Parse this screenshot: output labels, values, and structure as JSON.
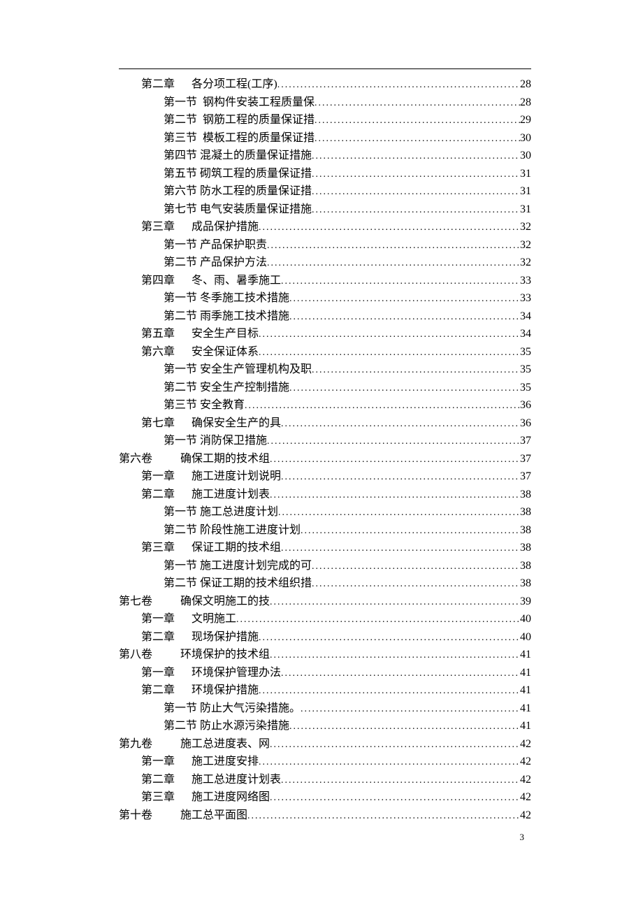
{
  "page_number": "3",
  "entries": [
    {
      "level": 1,
      "label": "第二章",
      "gap": 24,
      "title": "各分项工程(工序)",
      "page": "28"
    },
    {
      "level": 2,
      "label": "第一节",
      "gap": 8,
      "title": "钢构件安装工程质量保",
      "page": "28"
    },
    {
      "level": 2,
      "label": "第二节",
      "gap": 8,
      "title": "钢筋工程的质量保证措",
      "page": "29"
    },
    {
      "level": 2,
      "label": "第三节",
      "gap": 8,
      "title": "模板工程的质量保证措",
      "page": "30"
    },
    {
      "level": 2,
      "label": "第四节",
      "gap": 4,
      "title": "混凝土的质量保证措施",
      "page": "30"
    },
    {
      "level": 2,
      "label": "第五节",
      "gap": 4,
      "title": "砌筑工程的质量保证措",
      "page": "31"
    },
    {
      "level": 2,
      "label": "第六节",
      "gap": 4,
      "title": "防水工程的质量保证措",
      "page": "31"
    },
    {
      "level": 2,
      "label": "第七节",
      "gap": 4,
      "title": "电气安装质量保证措施",
      "page": "31"
    },
    {
      "level": 1,
      "label": "第三章",
      "gap": 24,
      "title": "成品保护措施",
      "page": "32"
    },
    {
      "level": 2,
      "label": "第一节",
      "gap": 4,
      "title": "产品保护职责",
      "page": "32"
    },
    {
      "level": 2,
      "label": "第二节",
      "gap": 4,
      "title": "产品保护方法",
      "page": "32"
    },
    {
      "level": 1,
      "label": "第四章",
      "gap": 24,
      "title": "冬、雨、暑季施工",
      "page": "33"
    },
    {
      "level": 2,
      "label": "第一节",
      "gap": 4,
      "title": "冬季施工技术措施",
      "page": "33"
    },
    {
      "level": 2,
      "label": "第二节",
      "gap": 4,
      "title": "雨季施工技术措施",
      "page": "34"
    },
    {
      "level": 1,
      "label": "第五章",
      "gap": 24,
      "title": "安全生产目标",
      "page": "34"
    },
    {
      "level": 1,
      "label": "第六章",
      "gap": 24,
      "title": "安全保证体系",
      "page": "35"
    },
    {
      "level": 2,
      "label": "第一节",
      "gap": 4,
      "title": "安全生产管理机构及职",
      "page": "35"
    },
    {
      "level": 2,
      "label": "第二节",
      "gap": 4,
      "title": "安全生产控制措施",
      "page": "35"
    },
    {
      "level": 2,
      "label": "第三节",
      "gap": 4,
      "title": "安全教育",
      "page": "36"
    },
    {
      "level": 1,
      "label": "第七章",
      "gap": 24,
      "title": "确保安全生产的具",
      "page": "36"
    },
    {
      "level": 2,
      "label": "第一节",
      "gap": 4,
      "title": "消防保卫措施",
      "page": "37"
    },
    {
      "level": 0,
      "label": "第六卷",
      "gap": 40,
      "title": "确保工期的技术组",
      "page": "37"
    },
    {
      "level": 1,
      "label": "第一章",
      "gap": 24,
      "title": "施工进度计划说明",
      "page": "37"
    },
    {
      "level": 1,
      "label": "第二章",
      "gap": 24,
      "title": "施工进度计划表",
      "page": "38"
    },
    {
      "level": 2,
      "label": "第一节",
      "gap": 4,
      "title": "施工总进度计划",
      "page": "38"
    },
    {
      "level": 2,
      "label": "第二节",
      "gap": 4,
      "title": "阶段性施工进度计划",
      "page": "38"
    },
    {
      "level": 1,
      "label": "第三章",
      "gap": 24,
      "title": "保证工期的技术组",
      "page": "38"
    },
    {
      "level": 2,
      "label": "第一节",
      "gap": 4,
      "title": "施工进度计划完成的可",
      "page": "38"
    },
    {
      "level": 2,
      "label": "第二节",
      "gap": 4,
      "title": "保证工期的技术组织措",
      "page": "38"
    },
    {
      "level": 0,
      "label": "第七卷",
      "gap": 40,
      "title": "确保文明施工的技",
      "page": "39"
    },
    {
      "level": 1,
      "label": "第一章",
      "gap": 24,
      "title": "文明施工",
      "page": "40"
    },
    {
      "level": 1,
      "label": "第二章",
      "gap": 24,
      "title": "现场保护措施",
      "page": "40"
    },
    {
      "level": 0,
      "label": "第八卷",
      "gap": 40,
      "title": "环境保护的技术组",
      "page": "41"
    },
    {
      "level": 1,
      "label": "第一章",
      "gap": 24,
      "title": "环境保护管理办法",
      "page": "41"
    },
    {
      "level": 1,
      "label": "第二章",
      "gap": 24,
      "title": "环境保护措施",
      "page": "41"
    },
    {
      "level": 2,
      "label": "第一节",
      "gap": 4,
      "title": "防止大气污染措施。",
      "page": "41"
    },
    {
      "level": 2,
      "label": "第二节",
      "gap": 4,
      "title": "防止水源污染措施",
      "page": "41"
    },
    {
      "level": 0,
      "label": "第九卷",
      "gap": 40,
      "title": "施工总进度表、网",
      "page": "42"
    },
    {
      "level": 1,
      "label": "第一章",
      "gap": 24,
      "title": "施工进度安排",
      "page": "42"
    },
    {
      "level": 1,
      "label": "第二章",
      "gap": 24,
      "title": "施工总进度计划表",
      "page": "42"
    },
    {
      "level": 1,
      "label": "第三章",
      "gap": 24,
      "title": "施工进度网络图",
      "page": "42"
    },
    {
      "level": 0,
      "label": "第十卷",
      "gap": 40,
      "title": "施工总平面图",
      "page": "42"
    }
  ]
}
